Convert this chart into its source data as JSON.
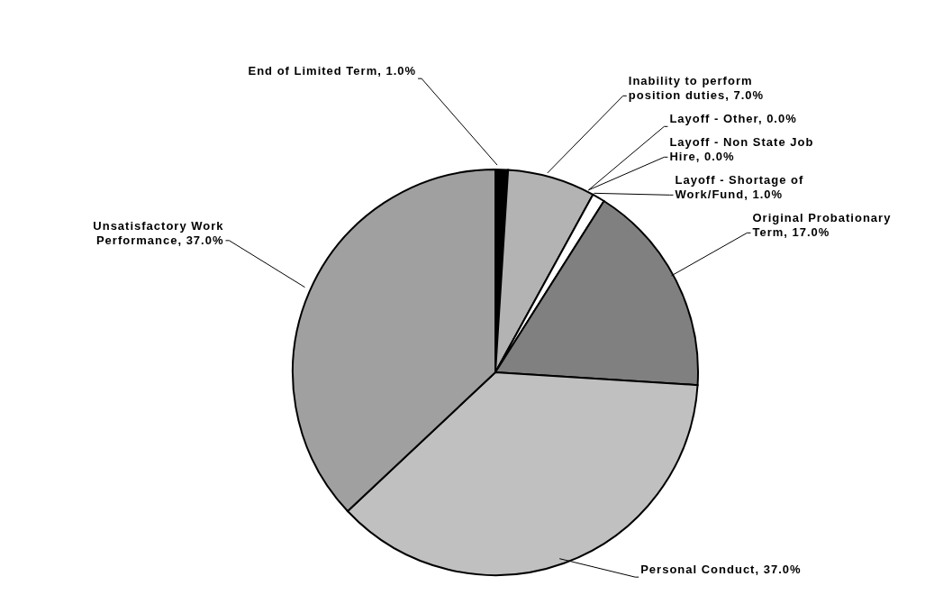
{
  "chart_data": {
    "type": "pie",
    "categories": [
      "End of Limited Term",
      "Inability to perform position duties",
      "Layoff - Other",
      "Layoff - Non State Job Hire",
      "Layoff - Shortage of Work/Fund",
      "Original Probationary Term",
      "Personal Conduct",
      "Unsatisfactory Work Performance"
    ],
    "values": [
      1,
      7,
      0,
      0,
      1,
      17,
      37,
      37
    ],
    "value_labels": [
      ", 1.0%",
      ", 7.0%",
      ", 0.0%",
      ", 0.0%",
      ", 1.0%",
      ", 17.0%",
      ", 37.0%",
      ", 37.0%"
    ],
    "colors": [
      "#000000",
      "#b3b3b3",
      "#ffffff",
      "#ffffff",
      "#ffffff",
      "#808080",
      "#c0c0c0",
      "#a0a0a0"
    ],
    "legend": false
  }
}
